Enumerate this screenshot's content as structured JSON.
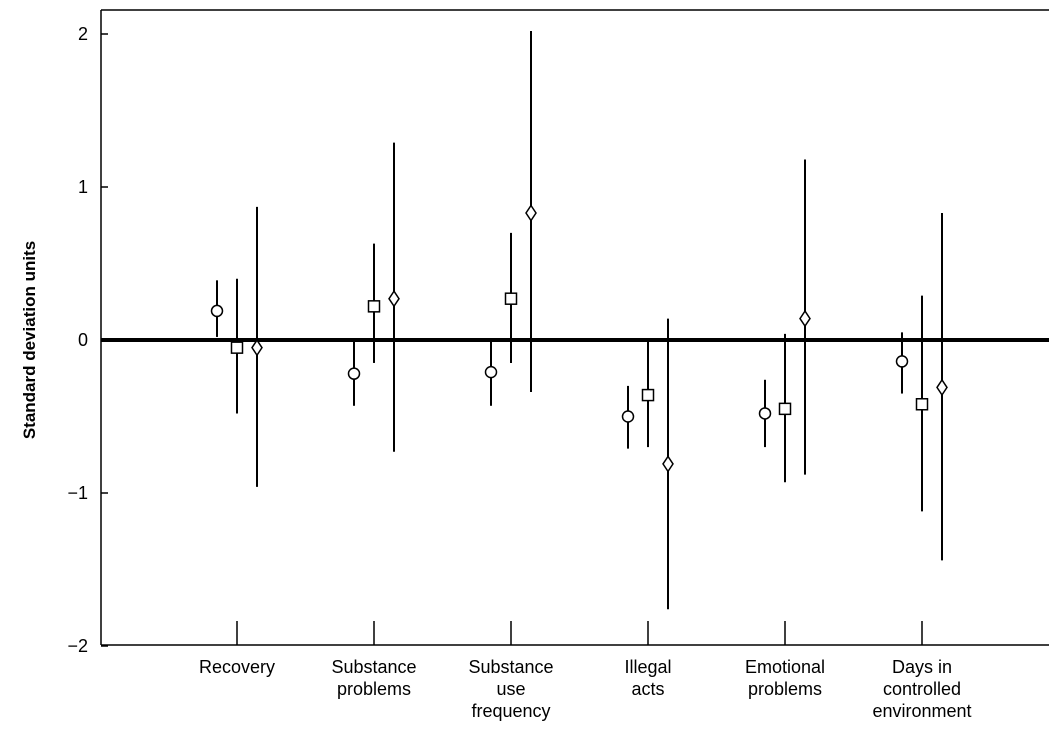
{
  "chart_data": {
    "type": "scatter",
    "title": "",
    "xlabel": "",
    "ylabel": "Standard deviation units",
    "ylim": [
      -2,
      2.2
    ],
    "yticks": [
      "2",
      "1",
      "0",
      "−1",
      "−2"
    ],
    "ytick_values": [
      2,
      1,
      0,
      -1,
      -2
    ],
    "grid": false,
    "reference_line_y": 0,
    "categories": [
      [
        "Recovery"
      ],
      [
        "Substance",
        "problems"
      ],
      [
        "Substance",
        "use",
        "frequency"
      ],
      [
        "Illegal",
        "acts"
      ],
      [
        "Emotional",
        "problems"
      ],
      [
        "Days in",
        "controlled",
        "environment"
      ]
    ],
    "series": [
      {
        "marker": "circle",
        "values": [
          0.19,
          -0.22,
          -0.21,
          -0.5,
          -0.48,
          -0.14
        ],
        "lower": [
          0.02,
          -0.43,
          -0.43,
          -0.71,
          -0.7,
          -0.35
        ],
        "upper": [
          0.39,
          0.0,
          0.0,
          -0.3,
          -0.26,
          0.05
        ]
      },
      {
        "marker": "square",
        "values": [
          -0.05,
          0.22,
          0.27,
          -0.36,
          -0.45,
          -0.42
        ],
        "lower": [
          -0.48,
          -0.15,
          -0.15,
          -0.7,
          -0.93,
          -1.12
        ],
        "upper": [
          0.4,
          0.63,
          0.7,
          0.0,
          0.04,
          0.29
        ]
      },
      {
        "marker": "diamond",
        "values": [
          -0.05,
          0.27,
          0.83,
          -0.81,
          0.14,
          -0.31
        ],
        "lower": [
          -0.96,
          -0.73,
          -0.34,
          -1.76,
          -0.88,
          -1.44
        ],
        "upper": [
          0.87,
          1.29,
          2.02,
          0.14,
          1.18,
          0.83
        ]
      }
    ]
  }
}
